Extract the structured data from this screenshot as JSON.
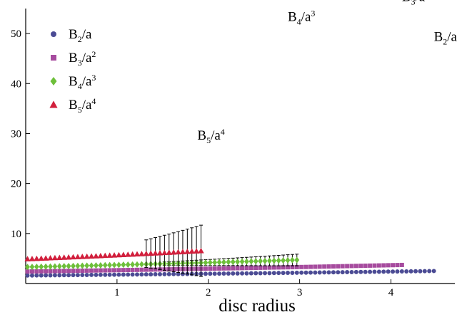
{
  "chart_data": {
    "type": "scatter",
    "xlabel": "disc radius",
    "ylabel": "",
    "title": "",
    "xlim": [
      0,
      4.7
    ],
    "ylim": [
      0,
      55
    ],
    "x_ticks": [
      1,
      2,
      3,
      4
    ],
    "y_ticks": [
      10,
      20,
      30,
      40,
      50
    ],
    "legend_position": "top-left",
    "series": [
      {
        "key": "b2",
        "legend_label": {
          "base": "B",
          "sub": "2",
          "tail": "/a",
          "sup": ""
        },
        "marker": "circle",
        "color": "#4b4b94",
        "x_start": 0.02,
        "x_step": 0.05,
        "x_end": 4.5,
        "y_at_zero": 1.6,
        "growth": 1.1052,
        "ref_x": 4.5,
        "ref_y": 46,
        "end_label_x": 4.47,
        "end_label_y": 48.5
      },
      {
        "key": "b3",
        "legend_label": {
          "base": "B",
          "sub": "3",
          "tail": "/a",
          "sup": "2"
        },
        "marker": "square",
        "color": "#a64b9e",
        "x_start": 0.02,
        "x_step": 0.05,
        "x_end": 4.15,
        "y_at_zero": 2.4,
        "growth": 1.1116,
        "ref_x": 4.15,
        "ref_y": 54,
        "end_label_x": 4.12,
        "end_label_y": 56.5,
        "error_from_x": 3.9,
        "error_scale": 0.02
      },
      {
        "key": "b4",
        "legend_label": {
          "base": "B",
          "sub": "4",
          "tail": "/a",
          "sup": "3"
        },
        "marker": "diamond",
        "color": "#6dbf3a",
        "x_start": 0.02,
        "x_step": 0.05,
        "x_end": 3.0,
        "y_at_zero": 3.3,
        "growth": 1.1268,
        "ref_x": 3.0,
        "ref_y": 48.6,
        "end_label_x": 2.87,
        "end_label_y": 52.5,
        "error_from_x": 1.5,
        "error_scale": 0.09
      },
      {
        "key": "b5",
        "legend_label": {
          "base": "B",
          "sub": "5",
          "tail": "/a",
          "sup": "4"
        },
        "marker": "triangle",
        "color": "#d11f3c",
        "x_start": 0.02,
        "x_step": 0.05,
        "x_end": 1.95,
        "y_at_zero": 4.9,
        "growth": 1.162,
        "ref_x": 1.95,
        "ref_y": 19.4,
        "end_label_x": 1.88,
        "end_label_y": 28.8,
        "error_from_x": 1.3,
        "error_scale": 0.45
      }
    ]
  }
}
